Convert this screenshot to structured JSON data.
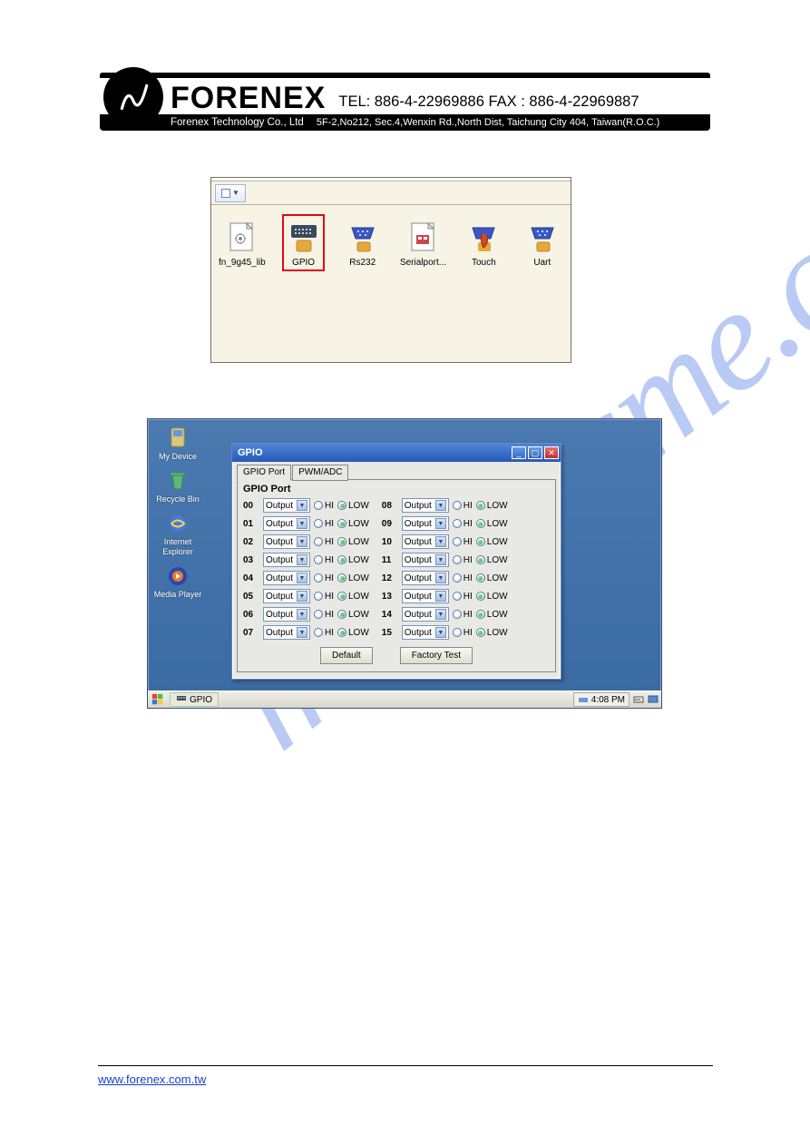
{
  "header": {
    "brand": "FORENEX",
    "sub_brand": "Forenex Technology Co., Ltd",
    "contact": "TEL: 886-4-22969886  FAX : 886-4-22969887",
    "address": "5F-2,No212, Sec.4,Wenxin Rd.,North Dist, Taichung City 404, Taiwan(R.O.C.)"
  },
  "explorer": {
    "items": [
      {
        "label": "fn_9g45_lib",
        "type": "dll"
      },
      {
        "label": "GPIO",
        "type": "exe",
        "highlighted": true
      },
      {
        "label": "Rs232",
        "type": "exe-blue"
      },
      {
        "label": "Serialport...",
        "type": "dll2"
      },
      {
        "label": "Touch",
        "type": "exe-red"
      },
      {
        "label": "Uart",
        "type": "exe-blue"
      }
    ]
  },
  "desktop": {
    "icons": [
      {
        "label": "My Device"
      },
      {
        "label": "Recycle Bin"
      },
      {
        "label": "Internet Explorer"
      },
      {
        "label": "Media Player"
      }
    ],
    "bg_color": "#4a7ab0"
  },
  "dialog": {
    "title": "GPIO",
    "tabs": [
      "GPIO Port",
      "PWM/ADC"
    ],
    "panel_title": "GPIO Port",
    "mode_label": "Output",
    "hi_label": "HI",
    "low_label": "LOW",
    "left_ports": [
      "00",
      "01",
      "02",
      "03",
      "04",
      "05",
      "06",
      "07"
    ],
    "right_ports": [
      "08",
      "09",
      "10",
      "11",
      "12",
      "13",
      "14",
      "15"
    ],
    "default_btn": "Default",
    "factory_btn": "Factory Test"
  },
  "taskbar": {
    "task": "GPIO",
    "time": "4:08 PM"
  },
  "footer": {
    "url": "www.forenex.com.tw"
  },
  "watermark": "manualsme.com",
  "colors": {
    "highlight_red": "#e30613",
    "radio_green": "#2aa82a",
    "titlebar_blue": "#2858b8",
    "link_blue": "#1a3fcf"
  }
}
